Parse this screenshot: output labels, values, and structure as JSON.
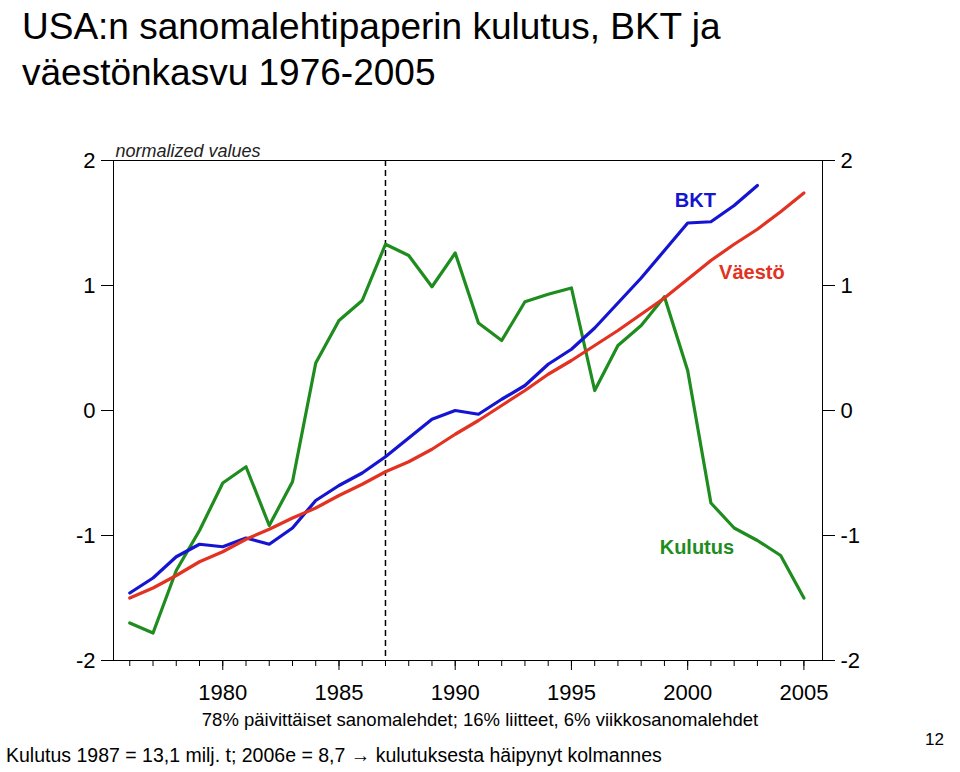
{
  "chart_data": {
    "type": "line",
    "title": "USA:n sanomalehtipaperin kulutus, BKT ja väestönkasvu 1976-2005",
    "ylabel": "normalized values",
    "x": [
      1976,
      1977,
      1978,
      1979,
      1980,
      1981,
      1982,
      1983,
      1984,
      1985,
      1986,
      1987,
      1988,
      1989,
      1990,
      1991,
      1992,
      1993,
      1994,
      1995,
      1996,
      1997,
      1998,
      1999,
      2000,
      2001,
      2002,
      2003,
      2004,
      2005
    ],
    "series": [
      {
        "name": "Kulutus",
        "color": "#1e8c1e",
        "values": [
          -1.7,
          -1.78,
          -1.28,
          -0.96,
          -0.58,
          -0.45,
          -0.92,
          -0.57,
          0.38,
          0.72,
          0.88,
          1.33,
          1.24,
          0.99,
          1.26,
          0.7,
          0.56,
          0.87,
          0.93,
          0.98,
          0.16,
          0.52,
          0.68,
          0.91,
          0.32,
          -0.74,
          -0.94,
          -1.04,
          -1.16,
          -1.5
        ]
      },
      {
        "name": "BKT",
        "color": "#1414d2",
        "values": [
          -1.46,
          -1.34,
          -1.17,
          -1.07,
          -1.09,
          -1.02,
          -1.07,
          -0.94,
          -0.72,
          -0.6,
          -0.5,
          -0.37,
          -0.22,
          -0.07,
          0.0,
          -0.03,
          0.09,
          0.2,
          0.37,
          0.49,
          0.66,
          0.86,
          1.06,
          1.28,
          1.5,
          1.51,
          1.64,
          1.8,
          null,
          null
        ]
      },
      {
        "name": "Väestö",
        "color": "#e23222",
        "values": [
          -1.5,
          -1.42,
          -1.32,
          -1.21,
          -1.13,
          -1.03,
          -0.95,
          -0.86,
          -0.78,
          -0.68,
          -0.59,
          -0.49,
          -0.41,
          -0.31,
          -0.19,
          -0.08,
          0.04,
          0.16,
          0.29,
          0.4,
          0.52,
          0.64,
          0.77,
          0.9,
          1.05,
          1.2,
          1.33,
          1.45,
          1.59,
          1.74
        ]
      }
    ],
    "xlim": [
      1975.3,
      2005.8
    ],
    "xticks": [
      1980,
      1985,
      1990,
      1995,
      2000,
      2005
    ],
    "ylim": [
      -2,
      2
    ],
    "yticks": [
      -2,
      -1,
      0,
      1,
      2
    ],
    "vline": {
      "x": 1987,
      "line_style": "dashed"
    },
    "notes": [
      "78% päivittäiset sanomalehdet; 16% liitteet, 6% viikkosanomalehdet",
      "Kulutus 1987 = 13,1 milj. t; 2006e = 8,7 → kulutuksesta häipynyt kolmannes"
    ],
    "page": "12",
    "grid": false
  }
}
